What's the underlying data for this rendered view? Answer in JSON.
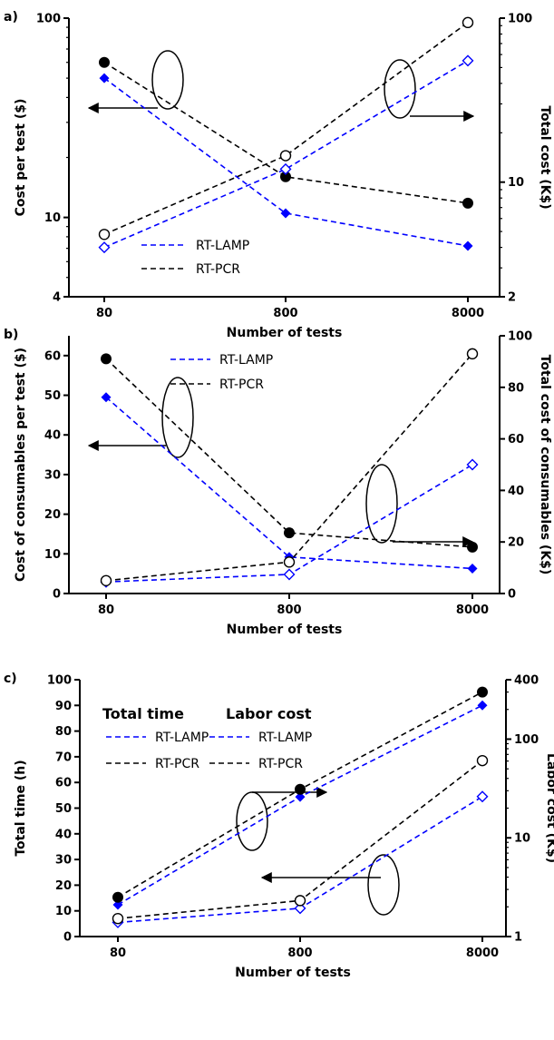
{
  "chart_data": [
    {
      "panel": "a)",
      "type": "line",
      "x_categories": [
        "80",
        "800",
        "8000"
      ],
      "xlabel": "Number of tests",
      "ylabel_left": "Cost per test ($)",
      "ylabel_right": "Total cost (K$)",
      "y_left": {
        "scale": "log",
        "range": [
          4,
          100
        ],
        "ticks": [
          "4",
          "10",
          "100"
        ]
      },
      "y_right": {
        "scale": "log",
        "range": [
          2,
          100
        ],
        "ticks": [
          "2",
          "10",
          "100"
        ]
      },
      "legend": [
        "RT-LAMP",
        "RT-PCR"
      ],
      "series": [
        {
          "name": "RT-LAMP",
          "axis": "left",
          "marker": "filled-diamond",
          "color": "#0000ff",
          "values": [
            50,
            10.5,
            7.2
          ]
        },
        {
          "name": "RT-PCR",
          "axis": "left",
          "marker": "filled-circle",
          "color": "#000000",
          "values": [
            60,
            16,
            11.8
          ]
        },
        {
          "name": "RT-LAMP",
          "axis": "right",
          "marker": "open-diamond",
          "color": "#0000ff",
          "values": [
            4,
            12,
            55
          ]
        },
        {
          "name": "RT-PCR",
          "axis": "right",
          "marker": "open-circle",
          "color": "#000000",
          "values": [
            4.8,
            14.5,
            94
          ]
        }
      ]
    },
    {
      "panel": "b)",
      "type": "line",
      "x_categories": [
        "80",
        "800",
        "8000"
      ],
      "xlabel": "Number of tests",
      "ylabel_left": "Cost of consumables per test ($)",
      "ylabel_right": "Total cost of consumables (K$)",
      "y_left": {
        "scale": "linear",
        "range": [
          0,
          65
        ],
        "ticks": [
          "0",
          "10",
          "20",
          "30",
          "40",
          "50",
          "60"
        ]
      },
      "y_right": {
        "scale": "linear",
        "range": [
          0,
          100
        ],
        "ticks": [
          "0",
          "20",
          "40",
          "60",
          "80",
          "100"
        ]
      },
      "legend": [
        "RT-LAMP",
        "RT-PCR"
      ],
      "series": [
        {
          "name": "RT-LAMP",
          "axis": "left",
          "marker": "filled-diamond",
          "color": "#0000ff",
          "values": [
            49.5,
            9.2,
            6.3
          ]
        },
        {
          "name": "RT-PCR",
          "axis": "left",
          "marker": "filled-circle",
          "color": "#000000",
          "values": [
            59.2,
            15.3,
            11.7
          ]
        },
        {
          "name": "RT-LAMP",
          "axis": "right",
          "marker": "open-diamond",
          "color": "#0000ff",
          "values": [
            4.5,
            7.4,
            50
          ]
        },
        {
          "name": "RT-PCR",
          "axis": "right",
          "marker": "open-circle",
          "color": "#000000",
          "values": [
            5,
            12.2,
            93
          ]
        }
      ]
    },
    {
      "panel": "c)",
      "type": "line",
      "x_categories": [
        "80",
        "800",
        "8000"
      ],
      "xlabel": "Number of tests",
      "ylabel_left": "Total time (h)",
      "ylabel_right": "Labor cost (K$)",
      "y_left": {
        "scale": "linear",
        "range": [
          0,
          100
        ],
        "ticks": [
          "0",
          "10",
          "20",
          "30",
          "40",
          "50",
          "60",
          "70",
          "80",
          "90",
          "100"
        ]
      },
      "y_right": {
        "scale": "log",
        "range": [
          1,
          400
        ],
        "ticks": [
          "1",
          "10",
          "100",
          "400"
        ]
      },
      "legend_groups": [
        {
          "title": "Total time",
          "entries": [
            "RT-LAMP",
            "RT-PCR"
          ]
        },
        {
          "title": "Labor cost",
          "entries": [
            "RT-LAMP",
            "RT-PCR"
          ]
        }
      ],
      "series": [
        {
          "name": "RT-LAMP",
          "axis": "right",
          "marker": "filled-diamond",
          "color": "#0000ff",
          "values": [
            2.1,
            26,
            220
          ]
        },
        {
          "name": "RT-PCR",
          "axis": "right",
          "marker": "filled-circle",
          "color": "#000000",
          "values": [
            2.5,
            31,
            300
          ]
        },
        {
          "name": "RT-LAMP",
          "axis": "left",
          "marker": "open-diamond",
          "color": "#0000ff",
          "values": [
            5.5,
            11,
            54.5
          ]
        },
        {
          "name": "RT-PCR",
          "axis": "left",
          "marker": "open-circle",
          "color": "#000000",
          "values": [
            7,
            14,
            68.5
          ]
        }
      ]
    }
  ]
}
